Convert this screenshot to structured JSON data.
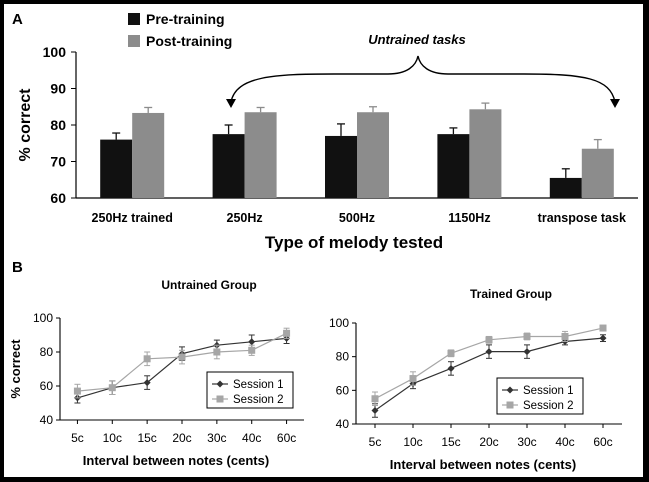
{
  "colors": {
    "pre": "#111111",
    "post": "#8c8c8c",
    "session1": "#333333",
    "session2": "#a6a6a6",
    "frame": "#000000",
    "background": "#ffffff"
  },
  "panel_a": {
    "label": "A",
    "legend": [
      "Pre-training",
      "Post-training"
    ],
    "annotation": "Untrained tasks"
  },
  "panel_b": {
    "label": "B"
  },
  "chart_data": [
    {
      "type": "bar",
      "panel": "A",
      "title": "",
      "xlabel": "Type of melody tested",
      "ylabel": "% correct",
      "ylim": [
        60,
        100
      ],
      "yticks": [
        60,
        70,
        80,
        90,
        100
      ],
      "categories": [
        "250Hz trained",
        "250Hz",
        "500Hz",
        "1150Hz",
        "transpose task"
      ],
      "series": [
        {
          "name": "Pre-training",
          "values": [
            76,
            77.5,
            77,
            77.5,
            65.5
          ],
          "errors": [
            1.8,
            2.5,
            3.3,
            1.7,
            2.5
          ]
        },
        {
          "name": "Post-training",
          "values": [
            83.3,
            83.5,
            83.5,
            84.3,
            73.5
          ],
          "errors": [
            1.5,
            1.3,
            1.5,
            1.7,
            2.5
          ]
        }
      ],
      "legend_position": "top-left",
      "annotation": "Untrained tasks"
    },
    {
      "type": "line",
      "panel": "B",
      "title": "Untrained Group",
      "xlabel": "Interval between notes (cents)",
      "ylabel": "% correct",
      "ylim": [
        40,
        100
      ],
      "yticks": [
        40,
        60,
        80,
        100
      ],
      "categories": [
        "5c",
        "10c",
        "15c",
        "20c",
        "30c",
        "40c",
        "60c"
      ],
      "series": [
        {
          "name": "Session 1",
          "values": [
            53,
            59,
            62,
            79,
            84,
            86,
            88
          ],
          "errors": [
            3,
            4,
            4,
            4,
            3,
            4,
            3
          ]
        },
        {
          "name": "Session 2",
          "values": [
            57,
            59,
            76,
            77,
            80,
            81,
            91
          ],
          "errors": [
            4,
            4,
            4,
            4,
            4,
            3,
            3
          ]
        }
      ],
      "legend_position": "bottom-right"
    },
    {
      "type": "line",
      "panel": "B",
      "title": "Trained Group",
      "xlabel": "Interval between notes (cents)",
      "ylabel": "",
      "ylim": [
        40,
        100
      ],
      "yticks": [
        40,
        60,
        80,
        100
      ],
      "categories": [
        "5c",
        "10c",
        "15c",
        "20c",
        "30c",
        "40c",
        "60c"
      ],
      "series": [
        {
          "name": "Session 1",
          "values": [
            48,
            64,
            73,
            83,
            83,
            89,
            91
          ],
          "errors": [
            4,
            3,
            4,
            4,
            4,
            2,
            2
          ]
        },
        {
          "name": "Session 2",
          "values": [
            55,
            67,
            82,
            90,
            92,
            92,
            97
          ],
          "errors": [
            4,
            4,
            2,
            2,
            2,
            3,
            1
          ]
        }
      ],
      "legend_position": "bottom-right"
    }
  ]
}
